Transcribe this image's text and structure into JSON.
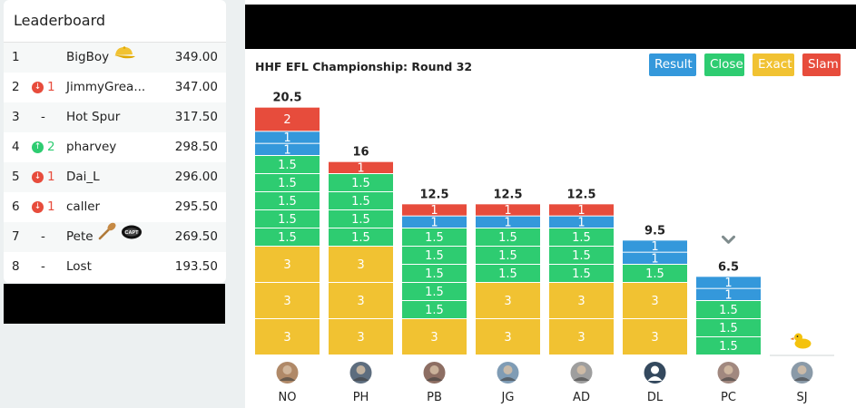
{
  "leaderboard": {
    "title": "Leaderboard",
    "rows": [
      {
        "rank": "1",
        "move_dir": "none",
        "move_num": "",
        "name": "BigBoy",
        "score": "349.00",
        "icons": [
          "cap-icon"
        ]
      },
      {
        "rank": "2",
        "move_dir": "down",
        "move_num": "1",
        "name": "JimmyGrea...",
        "score": "347.00",
        "icons": []
      },
      {
        "rank": "3",
        "move_dir": "dash",
        "move_num": "-",
        "name": "Hot Spur",
        "score": "317.50",
        "icons": []
      },
      {
        "rank": "4",
        "move_dir": "up",
        "move_num": "2",
        "name": "pharvey",
        "score": "298.50",
        "icons": []
      },
      {
        "rank": "5",
        "move_dir": "down",
        "move_num": "1",
        "name": "Dai_L",
        "score": "296.00",
        "icons": []
      },
      {
        "rank": "6",
        "move_dir": "down",
        "move_num": "1",
        "name": "caller",
        "score": "295.50",
        "icons": []
      },
      {
        "rank": "7",
        "move_dir": "dash",
        "move_num": "-",
        "name": "Pete",
        "score": "269.50",
        "icons": [
          "wooden-spoon-icon",
          "captain-armband-icon"
        ]
      },
      {
        "rank": "8",
        "move_dir": "dash",
        "move_num": "-",
        "name": "Lost",
        "score": "193.50",
        "icons": []
      }
    ]
  },
  "panel": {
    "round_title": "HHF EFL Championship: Round 32",
    "legend": [
      {
        "label": "Result",
        "color": "#3498db"
      },
      {
        "label": "Close",
        "color": "#2ecc71"
      },
      {
        "label": "Exact",
        "color": "#f1c232"
      },
      {
        "label": "Slam",
        "color": "#e74c3c"
      }
    ]
  },
  "colors": {
    "result": "#3498db",
    "close": "#2ecc71",
    "exact": "#f1c232",
    "slam": "#e74c3c"
  },
  "chart_data": {
    "type": "bar",
    "stacked": true,
    "unit_value_scale": "points",
    "players": [
      {
        "initials": "NO",
        "total": "20.5",
        "segments": [
          {
            "kind": "exact",
            "value": 3
          },
          {
            "kind": "exact",
            "value": 3
          },
          {
            "kind": "exact",
            "value": 3
          },
          {
            "kind": "close",
            "value": 1.5
          },
          {
            "kind": "close",
            "value": 1.5
          },
          {
            "kind": "close",
            "value": 1.5
          },
          {
            "kind": "close",
            "value": 1.5
          },
          {
            "kind": "close",
            "value": 1.5
          },
          {
            "kind": "result",
            "value": 1
          },
          {
            "kind": "result",
            "value": 1
          },
          {
            "kind": "slam",
            "value": 2
          }
        ]
      },
      {
        "initials": "PH",
        "total": "16",
        "segments": [
          {
            "kind": "exact",
            "value": 3
          },
          {
            "kind": "exact",
            "value": 3
          },
          {
            "kind": "exact",
            "value": 3
          },
          {
            "kind": "close",
            "value": 1.5
          },
          {
            "kind": "close",
            "value": 1.5
          },
          {
            "kind": "close",
            "value": 1.5
          },
          {
            "kind": "close",
            "value": 1.5
          },
          {
            "kind": "slam",
            "value": 1
          }
        ]
      },
      {
        "initials": "PB",
        "total": "12.5",
        "segments": [
          {
            "kind": "exact",
            "value": 3
          },
          {
            "kind": "close",
            "value": 1.5
          },
          {
            "kind": "close",
            "value": 1.5
          },
          {
            "kind": "close",
            "value": 1.5
          },
          {
            "kind": "close",
            "value": 1.5
          },
          {
            "kind": "close",
            "value": 1.5
          },
          {
            "kind": "result",
            "value": 1
          },
          {
            "kind": "slam",
            "value": 1
          }
        ]
      },
      {
        "initials": "JG",
        "total": "12.5",
        "segments": [
          {
            "kind": "exact",
            "value": 3
          },
          {
            "kind": "exact",
            "value": 3
          },
          {
            "kind": "close",
            "value": 1.5
          },
          {
            "kind": "close",
            "value": 1.5
          },
          {
            "kind": "close",
            "value": 1.5
          },
          {
            "kind": "result",
            "value": 1
          },
          {
            "kind": "slam",
            "value": 1
          }
        ]
      },
      {
        "initials": "AD",
        "total": "12.5",
        "segments": [
          {
            "kind": "exact",
            "value": 3
          },
          {
            "kind": "exact",
            "value": 3
          },
          {
            "kind": "close",
            "value": 1.5
          },
          {
            "kind": "close",
            "value": 1.5
          },
          {
            "kind": "close",
            "value": 1.5
          },
          {
            "kind": "result",
            "value": 1
          },
          {
            "kind": "slam",
            "value": 1
          }
        ]
      },
      {
        "initials": "DL",
        "total": "9.5",
        "segments": [
          {
            "kind": "exact",
            "value": 3
          },
          {
            "kind": "exact",
            "value": 3
          },
          {
            "kind": "close",
            "value": 1.5
          },
          {
            "kind": "result",
            "value": 1
          },
          {
            "kind": "result",
            "value": 1
          }
        ]
      },
      {
        "initials": "PC",
        "total": "6.5",
        "segments": [
          {
            "kind": "close",
            "value": 1.5
          },
          {
            "kind": "close",
            "value": 1.5
          },
          {
            "kind": "close",
            "value": 1.5
          },
          {
            "kind": "result",
            "value": 1
          },
          {
            "kind": "result",
            "value": 1
          }
        ],
        "marker": "chevron-down-icon"
      },
      {
        "initials": "SJ",
        "total": "",
        "segments": [],
        "marker": "rubber-duck-icon"
      }
    ]
  }
}
